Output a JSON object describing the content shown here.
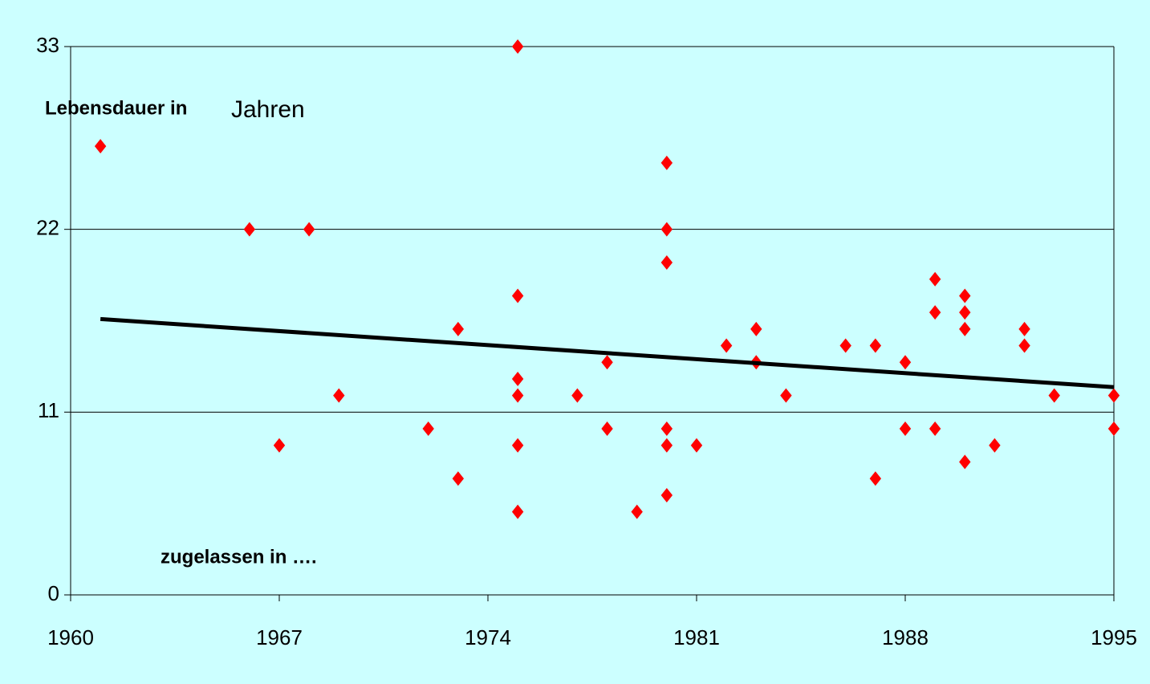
{
  "chart_data": {
    "type": "scatter",
    "annotations": [
      "Lebensdauer in",
      "Jahren",
      "zugelassen in …."
    ],
    "xlim": [
      1960,
      1995
    ],
    "xticks": [
      1960,
      1967,
      1974,
      1981,
      1988,
      1995
    ],
    "ylim": [
      0,
      33
    ],
    "yticks": [
      0,
      11,
      22,
      33
    ],
    "grid": true,
    "series": [
      {
        "color": "#ff0000",
        "mode": "markers",
        "x": [
          1961,
          1966,
          1968,
          1967,
          1969,
          1972,
          1973,
          1973,
          1975,
          1975,
          1975,
          1975,
          1975,
          1975,
          1977,
          1978,
          1978,
          1979,
          1980,
          1980,
          1980,
          1980,
          1980,
          1980,
          1981,
          1982,
          1983,
          1983,
          1984,
          1986,
          1987,
          1987,
          1988,
          1988,
          1989,
          1989,
          1989,
          1990,
          1990,
          1990,
          1990,
          1991,
          1992,
          1992,
          1993,
          1995,
          1995
        ],
        "values": [
          27,
          22,
          22,
          9,
          12,
          10,
          16,
          7,
          33,
          18,
          13,
          12,
          9,
          5,
          12,
          14,
          10,
          5,
          26,
          22,
          20,
          10,
          9,
          6,
          9,
          15,
          16,
          14,
          12,
          15,
          15,
          7,
          14,
          10,
          19,
          17,
          10,
          18,
          17,
          16,
          8,
          9,
          16,
          15,
          12,
          12,
          10
        ]
      },
      {
        "color": "#000000",
        "mode": "line",
        "x": [
          1961,
          1995
        ],
        "values": [
          16.6,
          12.5
        ]
      }
    ]
  }
}
